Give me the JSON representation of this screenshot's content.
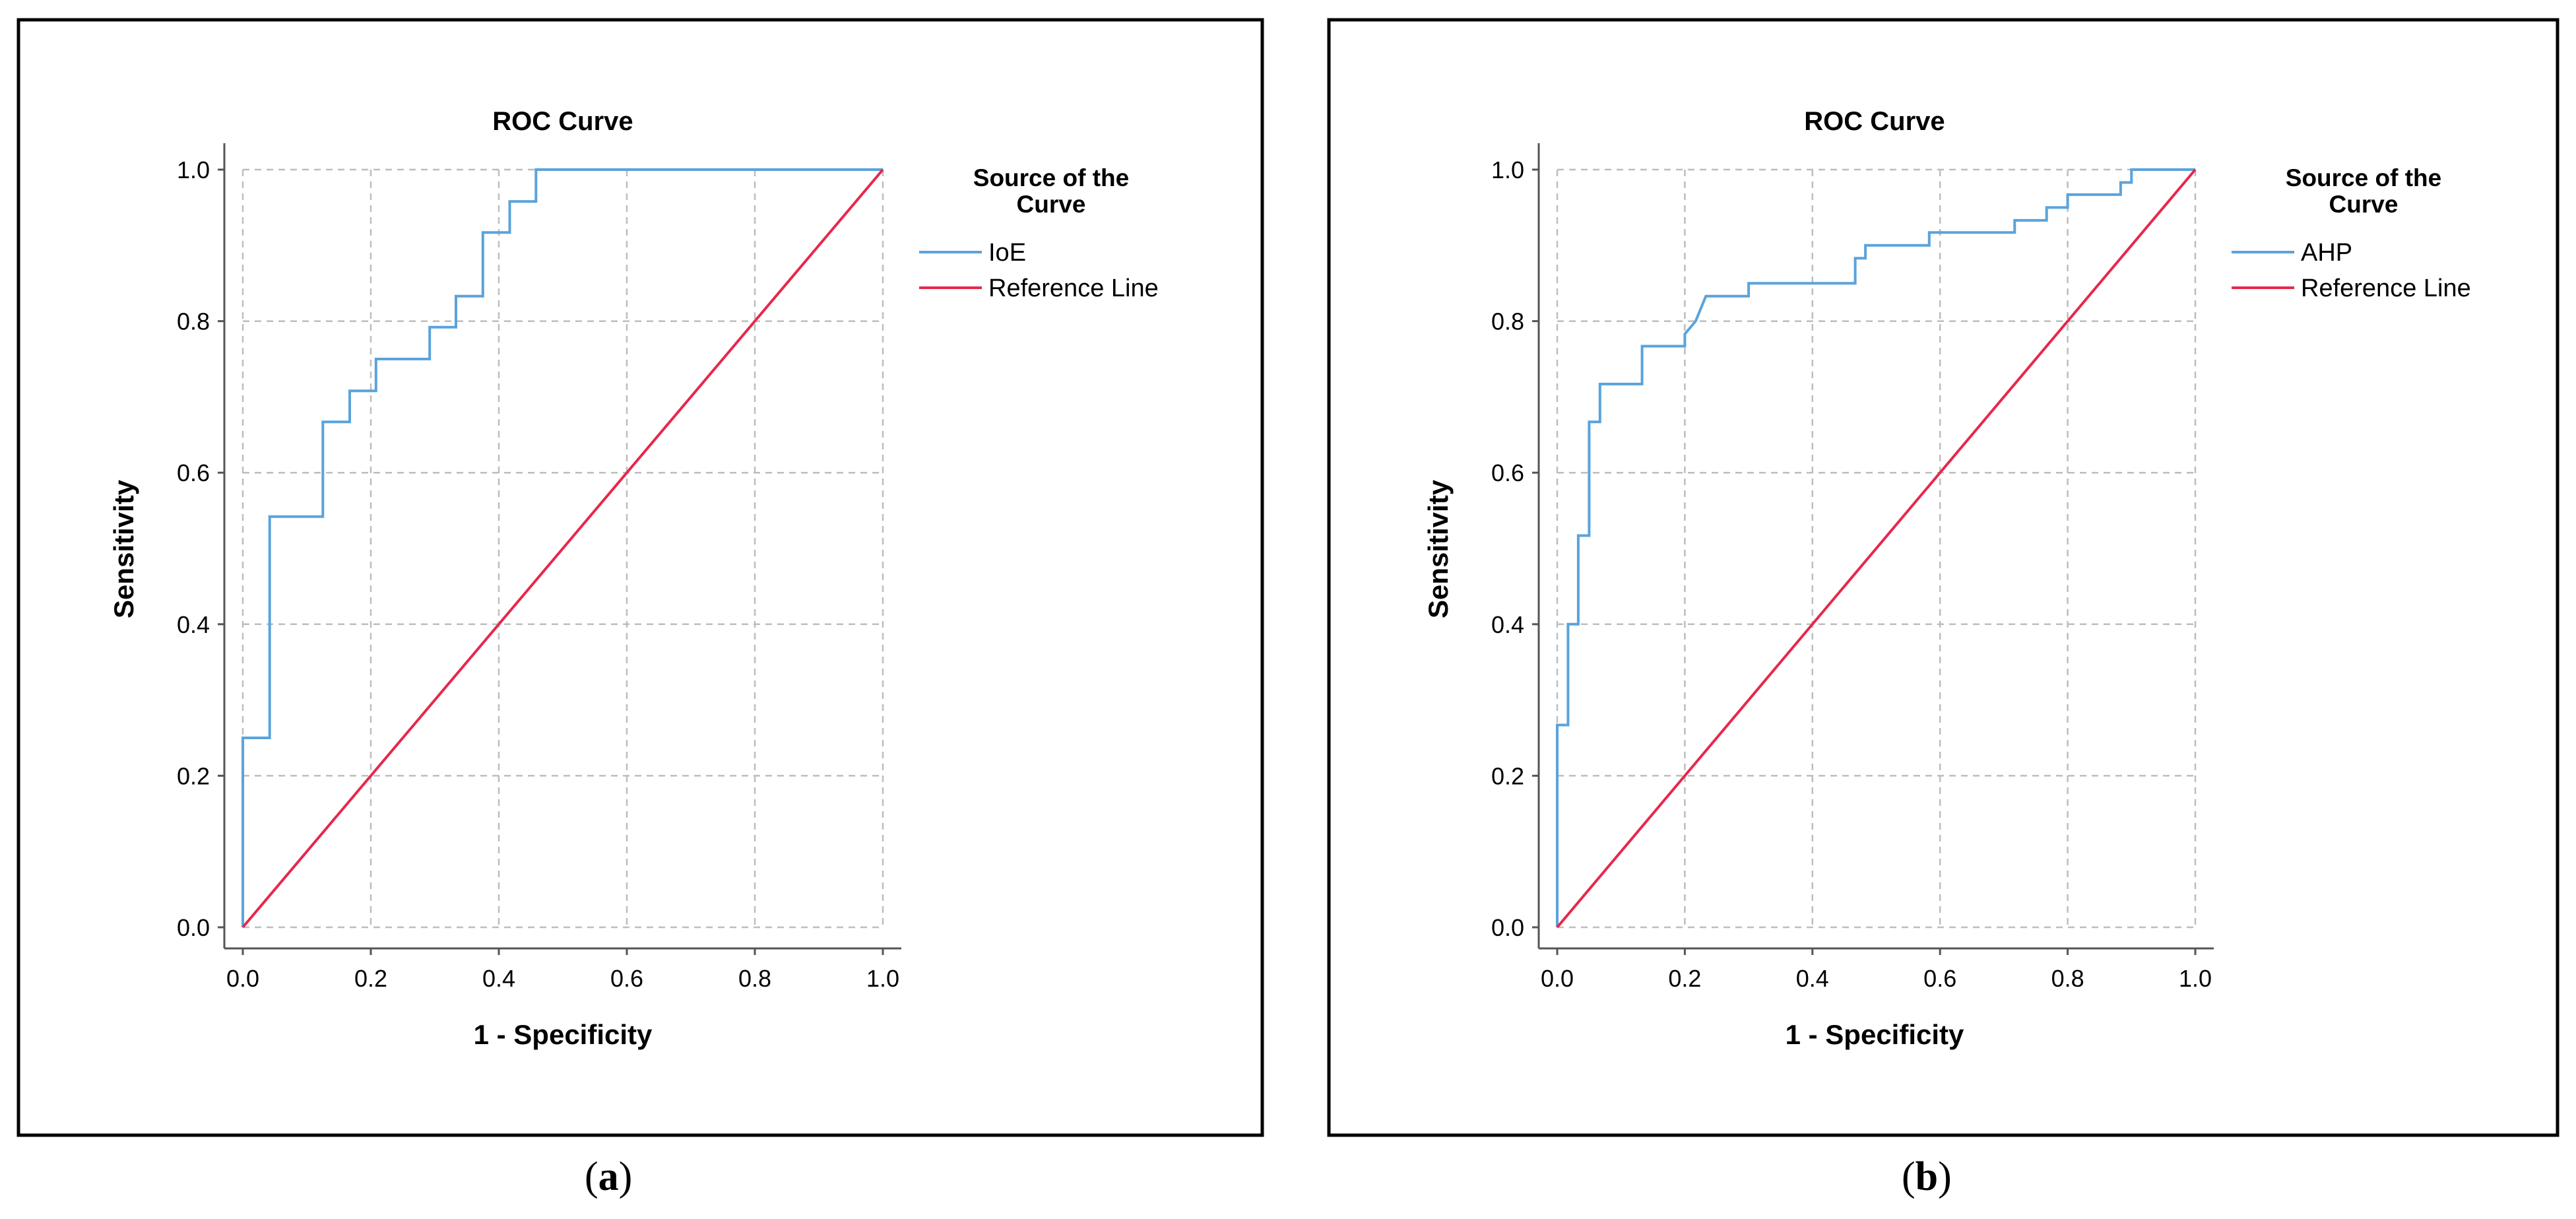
{
  "figure": {
    "captions": [
      {
        "open": "(",
        "letter": "a",
        "close": ")"
      },
      {
        "open": "(",
        "letter": "b",
        "close": ")"
      }
    ]
  },
  "chart_data": [
    {
      "type": "line",
      "title": "ROC Curve",
      "xlabel": "1 - Specificity",
      "ylabel": "Sensitivity",
      "xlim": [
        0,
        1
      ],
      "ylim": [
        0,
        1
      ],
      "xticks": [
        "0.0",
        "0.2",
        "0.4",
        "0.6",
        "0.8",
        "1.0"
      ],
      "yticks": [
        "0.0",
        "0.2",
        "0.4",
        "0.6",
        "0.8",
        "1.0"
      ],
      "grid": true,
      "legend_title": "Source of the Curve",
      "legend_position": "right",
      "colors": {
        "curve": "#5aa3dc",
        "reference": "#e8274b"
      },
      "series": [
        {
          "name": "IoE",
          "kind": "roc",
          "x": [
            0,
            0,
            0.042,
            0.042,
            0.125,
            0.125,
            0.167,
            0.167,
            0.208,
            0.208,
            0.292,
            0.292,
            0.333,
            0.333,
            0.375,
            0.375,
            0.417,
            0.417,
            0.458,
            0.458,
            1.0
          ],
          "y": [
            0,
            0.25,
            0.25,
            0.542,
            0.542,
            0.667,
            0.667,
            0.708,
            0.708,
            0.75,
            0.75,
            0.792,
            0.792,
            0.833,
            0.833,
            0.917,
            0.917,
            0.958,
            0.958,
            1.0,
            1.0
          ]
        },
        {
          "name": "Reference Line",
          "kind": "reference",
          "x": [
            0,
            1
          ],
          "y": [
            0,
            1
          ]
        }
      ]
    },
    {
      "type": "line",
      "title": "ROC Curve",
      "xlabel": "1 - Specificity",
      "ylabel": "Sensitivity",
      "xlim": [
        0,
        1
      ],
      "ylim": [
        0,
        1
      ],
      "xticks": [
        "0.0",
        "0.2",
        "0.4",
        "0.6",
        "0.8",
        "1.0"
      ],
      "yticks": [
        "0.0",
        "0.2",
        "0.4",
        "0.6",
        "0.8",
        "1.0"
      ],
      "grid": true,
      "legend_title": "Source of the Curve",
      "legend_position": "right",
      "colors": {
        "curve": "#5aa3dc",
        "reference": "#e8274b"
      },
      "series": [
        {
          "name": "AHP",
          "kind": "roc",
          "x": [
            0,
            0,
            0.017,
            0.017,
            0.033,
            0.033,
            0.05,
            0.05,
            0.067,
            0.067,
            0.133,
            0.133,
            0.2,
            0.2,
            0.217,
            0.233,
            0.3,
            0.3,
            0.467,
            0.467,
            0.483,
            0.483,
            0.583,
            0.583,
            0.717,
            0.717,
            0.767,
            0.767,
            0.8,
            0.8,
            0.883,
            0.883,
            0.9,
            0.9,
            1.0
          ],
          "y": [
            0,
            0.267,
            0.267,
            0.4,
            0.4,
            0.517,
            0.517,
            0.667,
            0.667,
            0.717,
            0.717,
            0.767,
            0.767,
            0.783,
            0.8,
            0.833,
            0.833,
            0.85,
            0.85,
            0.883,
            0.883,
            0.9,
            0.9,
            0.917,
            0.917,
            0.933,
            0.933,
            0.95,
            0.95,
            0.967,
            0.967,
            0.983,
            0.983,
            1.0,
            1.0
          ]
        },
        {
          "name": "Reference Line",
          "kind": "reference",
          "x": [
            0,
            1
          ],
          "y": [
            0,
            1
          ]
        }
      ]
    }
  ]
}
